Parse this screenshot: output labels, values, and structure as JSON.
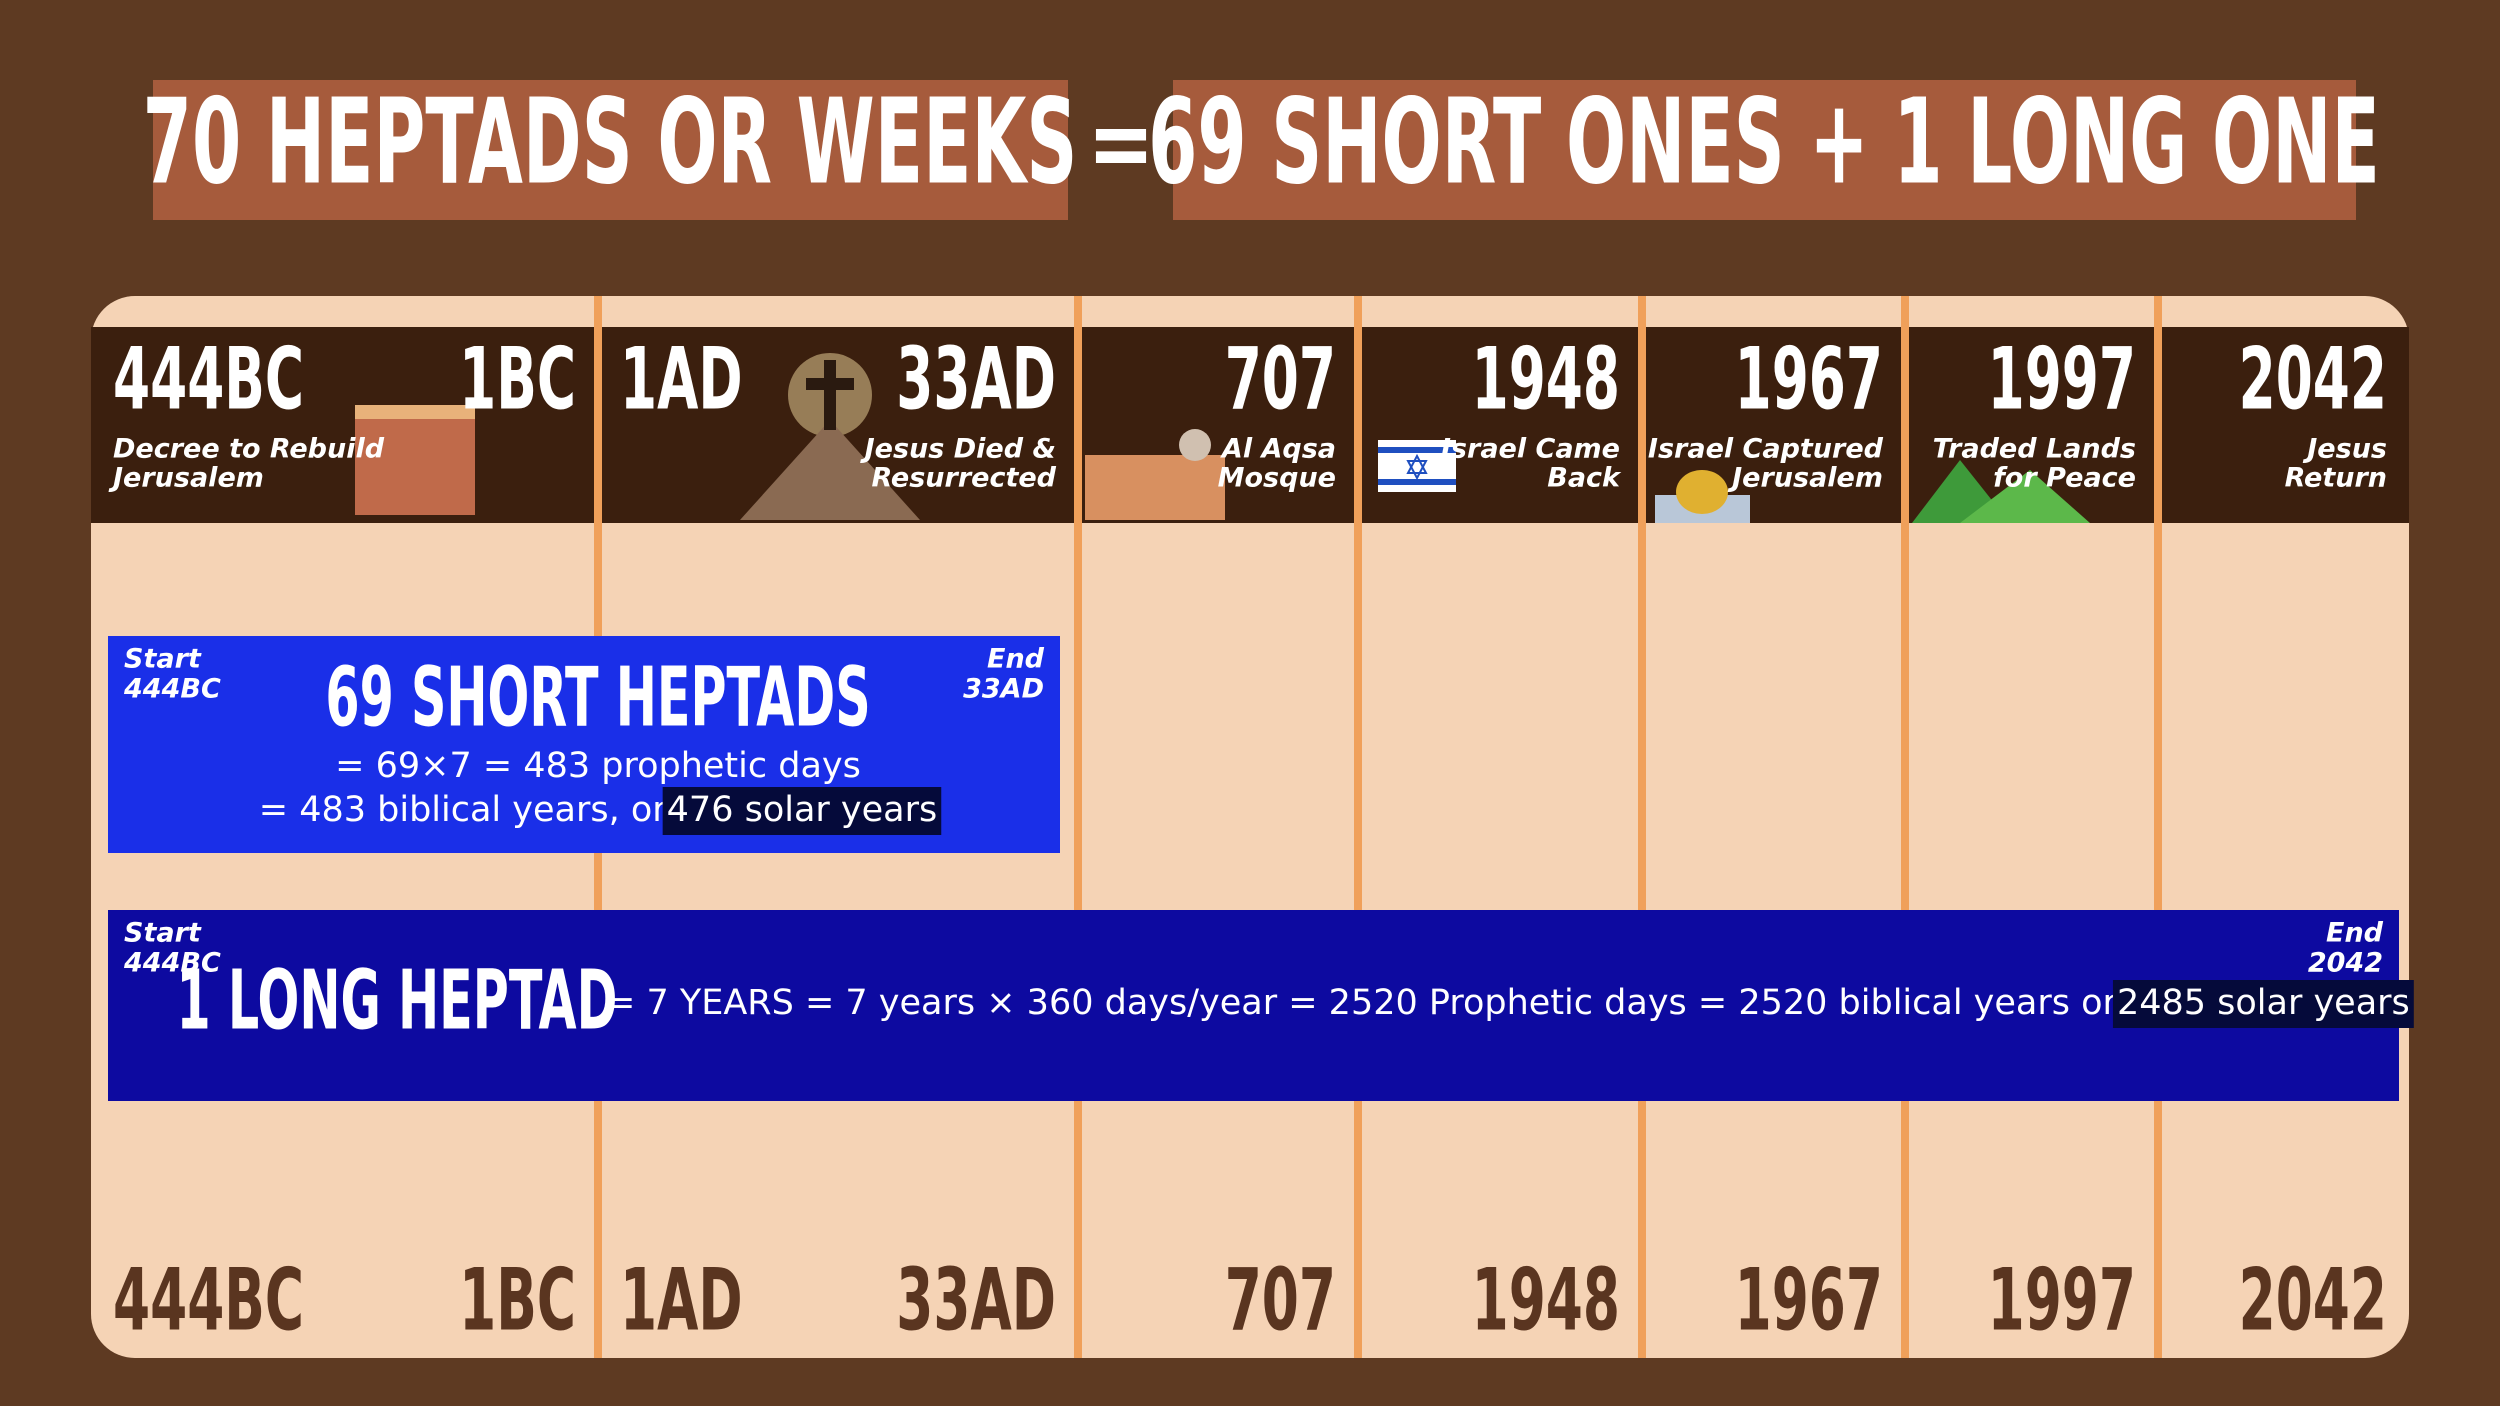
{
  "title": {
    "left": "70 HEPTADS OR WEEKS",
    "equals": "=",
    "right": "69 SHORT ONES + 1 LONG ONE"
  },
  "columns": [
    {
      "start": "444BC",
      "end": "1BC",
      "caption": [
        "Decree to Rebuild",
        "Jerusalem"
      ]
    },
    {
      "start": "1AD",
      "end": "33AD",
      "caption": [
        "Jesus Died &",
        "Resurrected"
      ]
    },
    {
      "end": "707",
      "caption": [
        "Al Aqsa",
        "Mosque"
      ]
    },
    {
      "end": "1948",
      "caption": [
        "Israel Came",
        "Back"
      ]
    },
    {
      "end": "1967",
      "caption": [
        "Israel Captured",
        "Jerusalem"
      ]
    },
    {
      "end": "1997",
      "caption": [
        "Traded Lands",
        "for Peace"
      ]
    },
    {
      "end": "2042",
      "caption": [
        "Jesus",
        "Return"
      ]
    }
  ],
  "bars": [
    {
      "start_label": "Start",
      "start": "444BC",
      "end_label": "End",
      "end": "33AD",
      "title": "69 SHORT HEPTADS",
      "lines": [
        "= 69×7 = 483 prophetic days",
        "= 483 biblical years, or "
      ],
      "highlight": "476 solar years"
    },
    {
      "start_label": "Start",
      "start": "444BC",
      "end_label": "End",
      "end": "2042",
      "title": "1 LONG HEPTAD",
      "lines": [
        "= 7 YEARS = 7 years × 360 days/year = 2520 Prophetic days = 2520 biblical years or "
      ],
      "highlight": "2485 solar years"
    }
  ]
}
